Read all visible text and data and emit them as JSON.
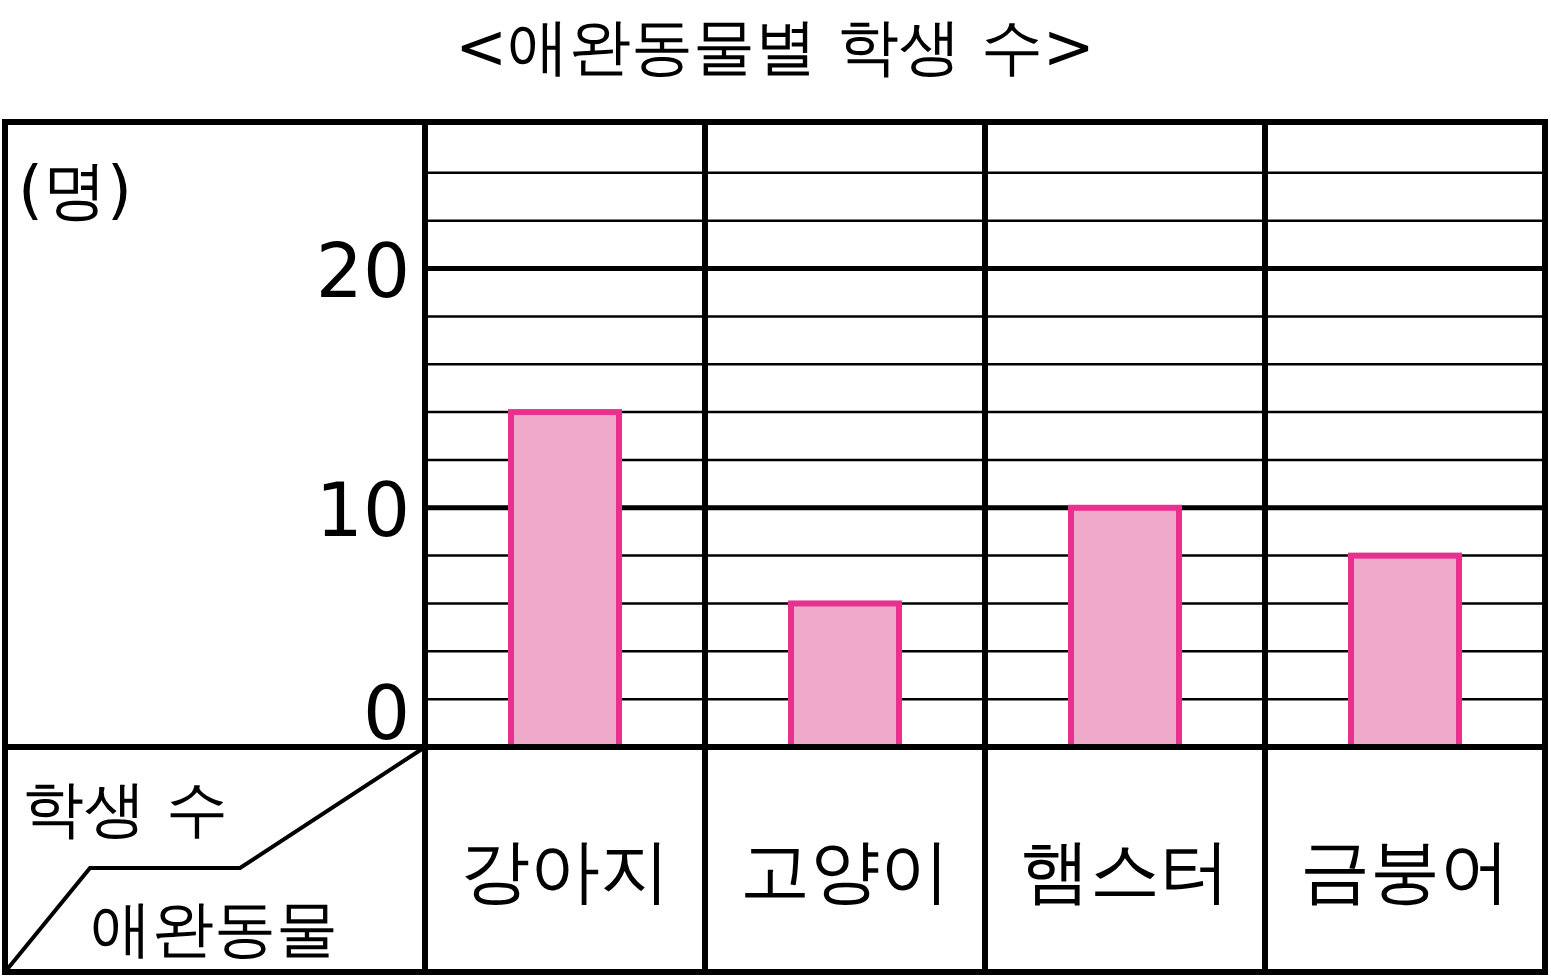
{
  "chart_data": {
    "type": "bar",
    "title": "<애완동물별 학생 수>",
    "xlabel": "애완동물",
    "ylabel": "학생 수",
    "annotations": [
      "(명)"
    ],
    "categories": [
      "강아지",
      "고양이",
      "햄스터",
      "금붕어"
    ],
    "values": [
      14,
      6,
      10,
      8
    ],
    "color": "#efaacb",
    "ylim": [
      0,
      26
    ],
    "yticks": [
      0,
      {
        "value": 2,
        "label": null
      },
      {
        "value": 4,
        "label": null
      },
      {
        "value": 6,
        "label": null
      },
      {
        "value": 8,
        "label": null
      },
      10,
      {
        "value": 12,
        "label": null
      },
      {
        "value": 14,
        "label": null
      },
      {
        "value": 16,
        "label": null
      },
      {
        "value": 18,
        "label": null
      },
      20,
      {
        "value": 22,
        "label": null
      },
      {
        "value": 24,
        "label": null
      }
    ],
    "grid": "y"
  }
}
